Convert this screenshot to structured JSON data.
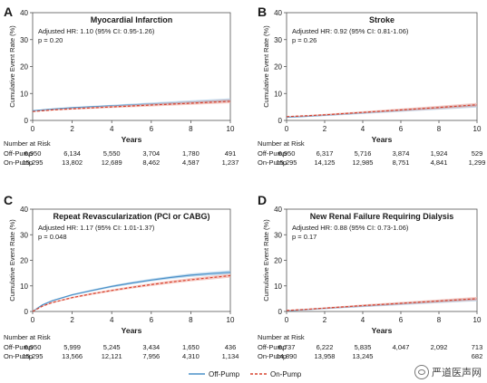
{
  "legend": {
    "off_pump": "Off-Pump",
    "on_pump": "On-Pump"
  },
  "colors": {
    "off_pump": "#4a90c8",
    "off_pump_band": "#a9cde8",
    "on_pump": "#d9432f",
    "on_pump_band": "#f2b7ae"
  },
  "watermark": "严道医声网",
  "chart_data": [
    {
      "type": "line",
      "panel": "A",
      "title": "Myocardial Infarction",
      "annotation": [
        "Adjusted HR: 1.10 (95% CI: 0.95-1.26)",
        "p = 0.20"
      ],
      "xlabel": "Years",
      "ylabel": "Cumulative Event Rate (%)",
      "xlim": [
        0,
        10
      ],
      "ylim": [
        0,
        40
      ],
      "xticks": [
        0,
        2,
        4,
        6,
        8,
        10
      ],
      "yticks": [
        0,
        10,
        20,
        30,
        40
      ],
      "series": [
        {
          "name": "Off-Pump",
          "x": [
            0,
            1,
            2,
            4,
            6,
            8,
            10
          ],
          "y": [
            3.6,
            4.2,
            4.7,
            5.4,
            6.1,
            6.8,
            7.5
          ]
        },
        {
          "name": "On-Pump",
          "x": [
            0,
            1,
            2,
            4,
            6,
            8,
            10
          ],
          "y": [
            3.3,
            3.9,
            4.3,
            5.0,
            5.7,
            6.4,
            7.1
          ]
        }
      ],
      "risk_table": {
        "title": "Number at Risk",
        "rows": [
          {
            "label": "Off-Pump",
            "values": [
              "6,950",
              "6,134",
              "5,550",
              "3,704",
              "1,780",
              "491"
            ]
          },
          {
            "label": "On-Pump",
            "values": [
              "15,295",
              "13,802",
              "12,689",
              "8,462",
              "4,587",
              "1,237"
            ]
          }
        ]
      }
    },
    {
      "type": "line",
      "panel": "B",
      "title": "Stroke",
      "annotation": [
        "Adjusted HR: 0.92 (95% CI: 0.81-1.06)",
        "p = 0.26"
      ],
      "xlabel": "Years",
      "ylabel": "Cumulative Event Rate (%)",
      "xlim": [
        0,
        10
      ],
      "ylim": [
        0,
        40
      ],
      "xticks": [
        0,
        2,
        4,
        6,
        8,
        10
      ],
      "yticks": [
        0,
        10,
        20,
        30,
        40
      ],
      "series": [
        {
          "name": "Off-Pump",
          "x": [
            0,
            1,
            2,
            4,
            6,
            8,
            10
          ],
          "y": [
            1.2,
            1.5,
            1.9,
            2.8,
            3.7,
            4.6,
            5.5
          ]
        },
        {
          "name": "On-Pump",
          "x": [
            0,
            1,
            2,
            4,
            6,
            8,
            10
          ],
          "y": [
            1.4,
            1.7,
            2.1,
            3.0,
            3.9,
            4.8,
            5.8
          ]
        }
      ],
      "risk_table": {
        "title": "Number at Risk",
        "rows": [
          {
            "label": "Off-Pump",
            "values": [
              "6,950",
              "6,317",
              "5,716",
              "3,874",
              "1,924",
              "529"
            ]
          },
          {
            "label": "On-Pump",
            "values": [
              "15,295",
              "14,125",
              "12,985",
              "8,751",
              "4,841",
              "1,299"
            ]
          }
        ]
      }
    },
    {
      "type": "line",
      "panel": "C",
      "title": "Repeat Revascularization (PCI or CABG)",
      "annotation": [
        "Adjusted HR: 1.17 (95% CI: 1.01-1.37)",
        "p = 0.048"
      ],
      "xlabel": "Years",
      "ylabel": "Cumulative Event Rate (%)",
      "xlim": [
        0,
        10
      ],
      "ylim": [
        0,
        40
      ],
      "xticks": [
        0,
        2,
        4,
        6,
        8,
        10
      ],
      "yticks": [
        0,
        10,
        20,
        30,
        40
      ],
      "series": [
        {
          "name": "Off-Pump",
          "x": [
            0,
            0.5,
            1,
            2,
            3,
            4,
            5,
            6,
            7,
            8,
            9,
            10
          ],
          "y": [
            0,
            2.6,
            4.2,
            6.5,
            8.2,
            9.8,
            11.1,
            12.3,
            13.3,
            14.2,
            14.8,
            15.3
          ]
        },
        {
          "name": "On-Pump",
          "x": [
            0,
            0.5,
            1,
            2,
            3,
            4,
            5,
            6,
            7,
            8,
            9,
            10
          ],
          "y": [
            0,
            2.1,
            3.5,
            5.4,
            6.9,
            8.2,
            9.4,
            10.5,
            11.5,
            12.4,
            13.2,
            14.0
          ]
        }
      ],
      "risk_table": {
        "title": "Number at Risk",
        "rows": [
          {
            "label": "Off-Pump",
            "values": [
              "6,950",
              "5,999",
              "5,245",
              "3,434",
              "1,650",
              "436"
            ]
          },
          {
            "label": "On-Pump",
            "values": [
              "15,295",
              "13,566",
              "12,121",
              "7,956",
              "4,310",
              "1,134"
            ]
          }
        ]
      }
    },
    {
      "type": "line",
      "panel": "D",
      "title": "New Renal Failure Requiring Dialysis",
      "annotation": [
        "Adjusted HR: 0.88 (95% CI: 0.73-1.06)",
        "p = 0.17"
      ],
      "xlabel": "Years",
      "ylabel": "Cumulative Event Rate (%)",
      "xlim": [
        0,
        10
      ],
      "ylim": [
        0,
        40
      ],
      "xticks": [
        0,
        2,
        4,
        6,
        8,
        10
      ],
      "yticks": [
        0,
        10,
        20,
        30,
        40
      ],
      "series": [
        {
          "name": "Off-Pump",
          "x": [
            0,
            1,
            2,
            4,
            6,
            8,
            10
          ],
          "y": [
            0.3,
            0.7,
            1.2,
            2.1,
            3.0,
            3.9,
            4.7
          ]
        },
        {
          "name": "On-Pump",
          "x": [
            0,
            1,
            2,
            4,
            6,
            8,
            10
          ],
          "y": [
            0.4,
            0.8,
            1.3,
            2.3,
            3.2,
            4.1,
            5.0
          ]
        }
      ],
      "risk_table": {
        "title": "Number at Risk",
        "rows": [
          {
            "label": "Off-Pump",
            "values": [
              "6,737",
              "6,222",
              "5,835",
              "4,047",
              "2,092",
              "713"
            ]
          },
          {
            "label": "On-Pump",
            "values": [
              "14,890",
              "13,958",
              "13,245",
              "",
              "",
              "682"
            ]
          }
        ]
      }
    }
  ]
}
